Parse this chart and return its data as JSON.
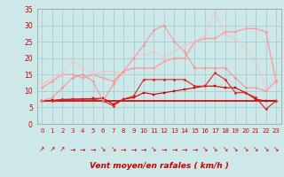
{
  "xlabel": "Vent moyen/en rafales ( km/h )",
  "bg_color": "#cce8e8",
  "grid_color": "#aacccc",
  "x": [
    0,
    1,
    2,
    3,
    4,
    5,
    6,
    7,
    8,
    9,
    10,
    11,
    12,
    13,
    14,
    15,
    16,
    17,
    18,
    19,
    20,
    21,
    22,
    23
  ],
  "series": [
    {
      "y": [
        7,
        7,
        7,
        7,
        7,
        7,
        7,
        7,
        7,
        7,
        7,
        7,
        7,
        7,
        7,
        7,
        7,
        7,
        7,
        7,
        7,
        7,
        7,
        7
      ],
      "color": "#cc0000",
      "lw": 1.2,
      "marker": null,
      "ms": 0,
      "alpha": 1.0
    },
    {
      "y": [
        7,
        7.2,
        7.3,
        7.5,
        7.6,
        7.7,
        7.8,
        6.0,
        7.5,
        8.0,
        9.5,
        9.0,
        9.5,
        10.0,
        10.5,
        11.0,
        11.5,
        11.5,
        11.0,
        11.0,
        9.5,
        7.5,
        7.0,
        7.0
      ],
      "color": "#cc0000",
      "lw": 0.8,
      "marker": "s",
      "ms": 1.5,
      "alpha": 1.0
    },
    {
      "y": [
        7,
        7,
        7.5,
        7.5,
        7.5,
        7.5,
        7.0,
        5.5,
        7.5,
        8.5,
        13.5,
        13.5,
        13.5,
        13.5,
        13.5,
        11.5,
        11.5,
        15.5,
        13.5,
        9.5,
        9.5,
        8.0,
        4.5,
        7.0
      ],
      "color": "#dd2222",
      "lw": 0.8,
      "marker": "D",
      "ms": 1.5,
      "alpha": 1.0
    },
    {
      "y": [
        11,
        13,
        15,
        15,
        14,
        15,
        14,
        13,
        16,
        17,
        17,
        17,
        19,
        20,
        20,
        25,
        26,
        26,
        28,
        28,
        29,
        29,
        28,
        13
      ],
      "color": "#ff9999",
      "lw": 0.9,
      "marker": "o",
      "ms": 1.5,
      "alpha": 1.0
    },
    {
      "y": [
        7,
        8,
        11,
        14,
        15,
        13,
        7,
        12,
        16,
        20,
        24,
        28.5,
        30,
        25,
        22,
        17,
        17,
        17,
        17,
        14,
        11,
        11,
        10,
        13
      ],
      "color": "#ff8888",
      "lw": 0.8,
      "marker": "o",
      "ms": 1.5,
      "alpha": 0.85
    },
    {
      "y": [
        12,
        14,
        15,
        19,
        17,
        15,
        16,
        16,
        15,
        21,
        21,
        22,
        20,
        22,
        24,
        25,
        27,
        34,
        27,
        26,
        23,
        19,
        11,
        14
      ],
      "color": "#ffbbbb",
      "lw": 0.8,
      "marker": "o",
      "ms": 1.5,
      "alpha": 0.75
    }
  ],
  "xlim": [
    -0.5,
    23.5
  ],
  "ylim": [
    0,
    35
  ],
  "yticks": [
    0,
    5,
    10,
    15,
    20,
    25,
    30,
    35
  ],
  "xticks": [
    0,
    1,
    2,
    3,
    4,
    5,
    6,
    7,
    8,
    9,
    10,
    11,
    12,
    13,
    14,
    15,
    16,
    17,
    18,
    19,
    20,
    21,
    22,
    23
  ],
  "arrow_chars": [
    "↗",
    "↗",
    "↗",
    "→",
    "→",
    "→",
    "↘",
    "↘",
    "→",
    "→",
    "→",
    "↘",
    "→",
    "→",
    "→",
    "→",
    "↘",
    "↘",
    "↘",
    "↘",
    "↘",
    "↘",
    "↘",
    "↘"
  ]
}
